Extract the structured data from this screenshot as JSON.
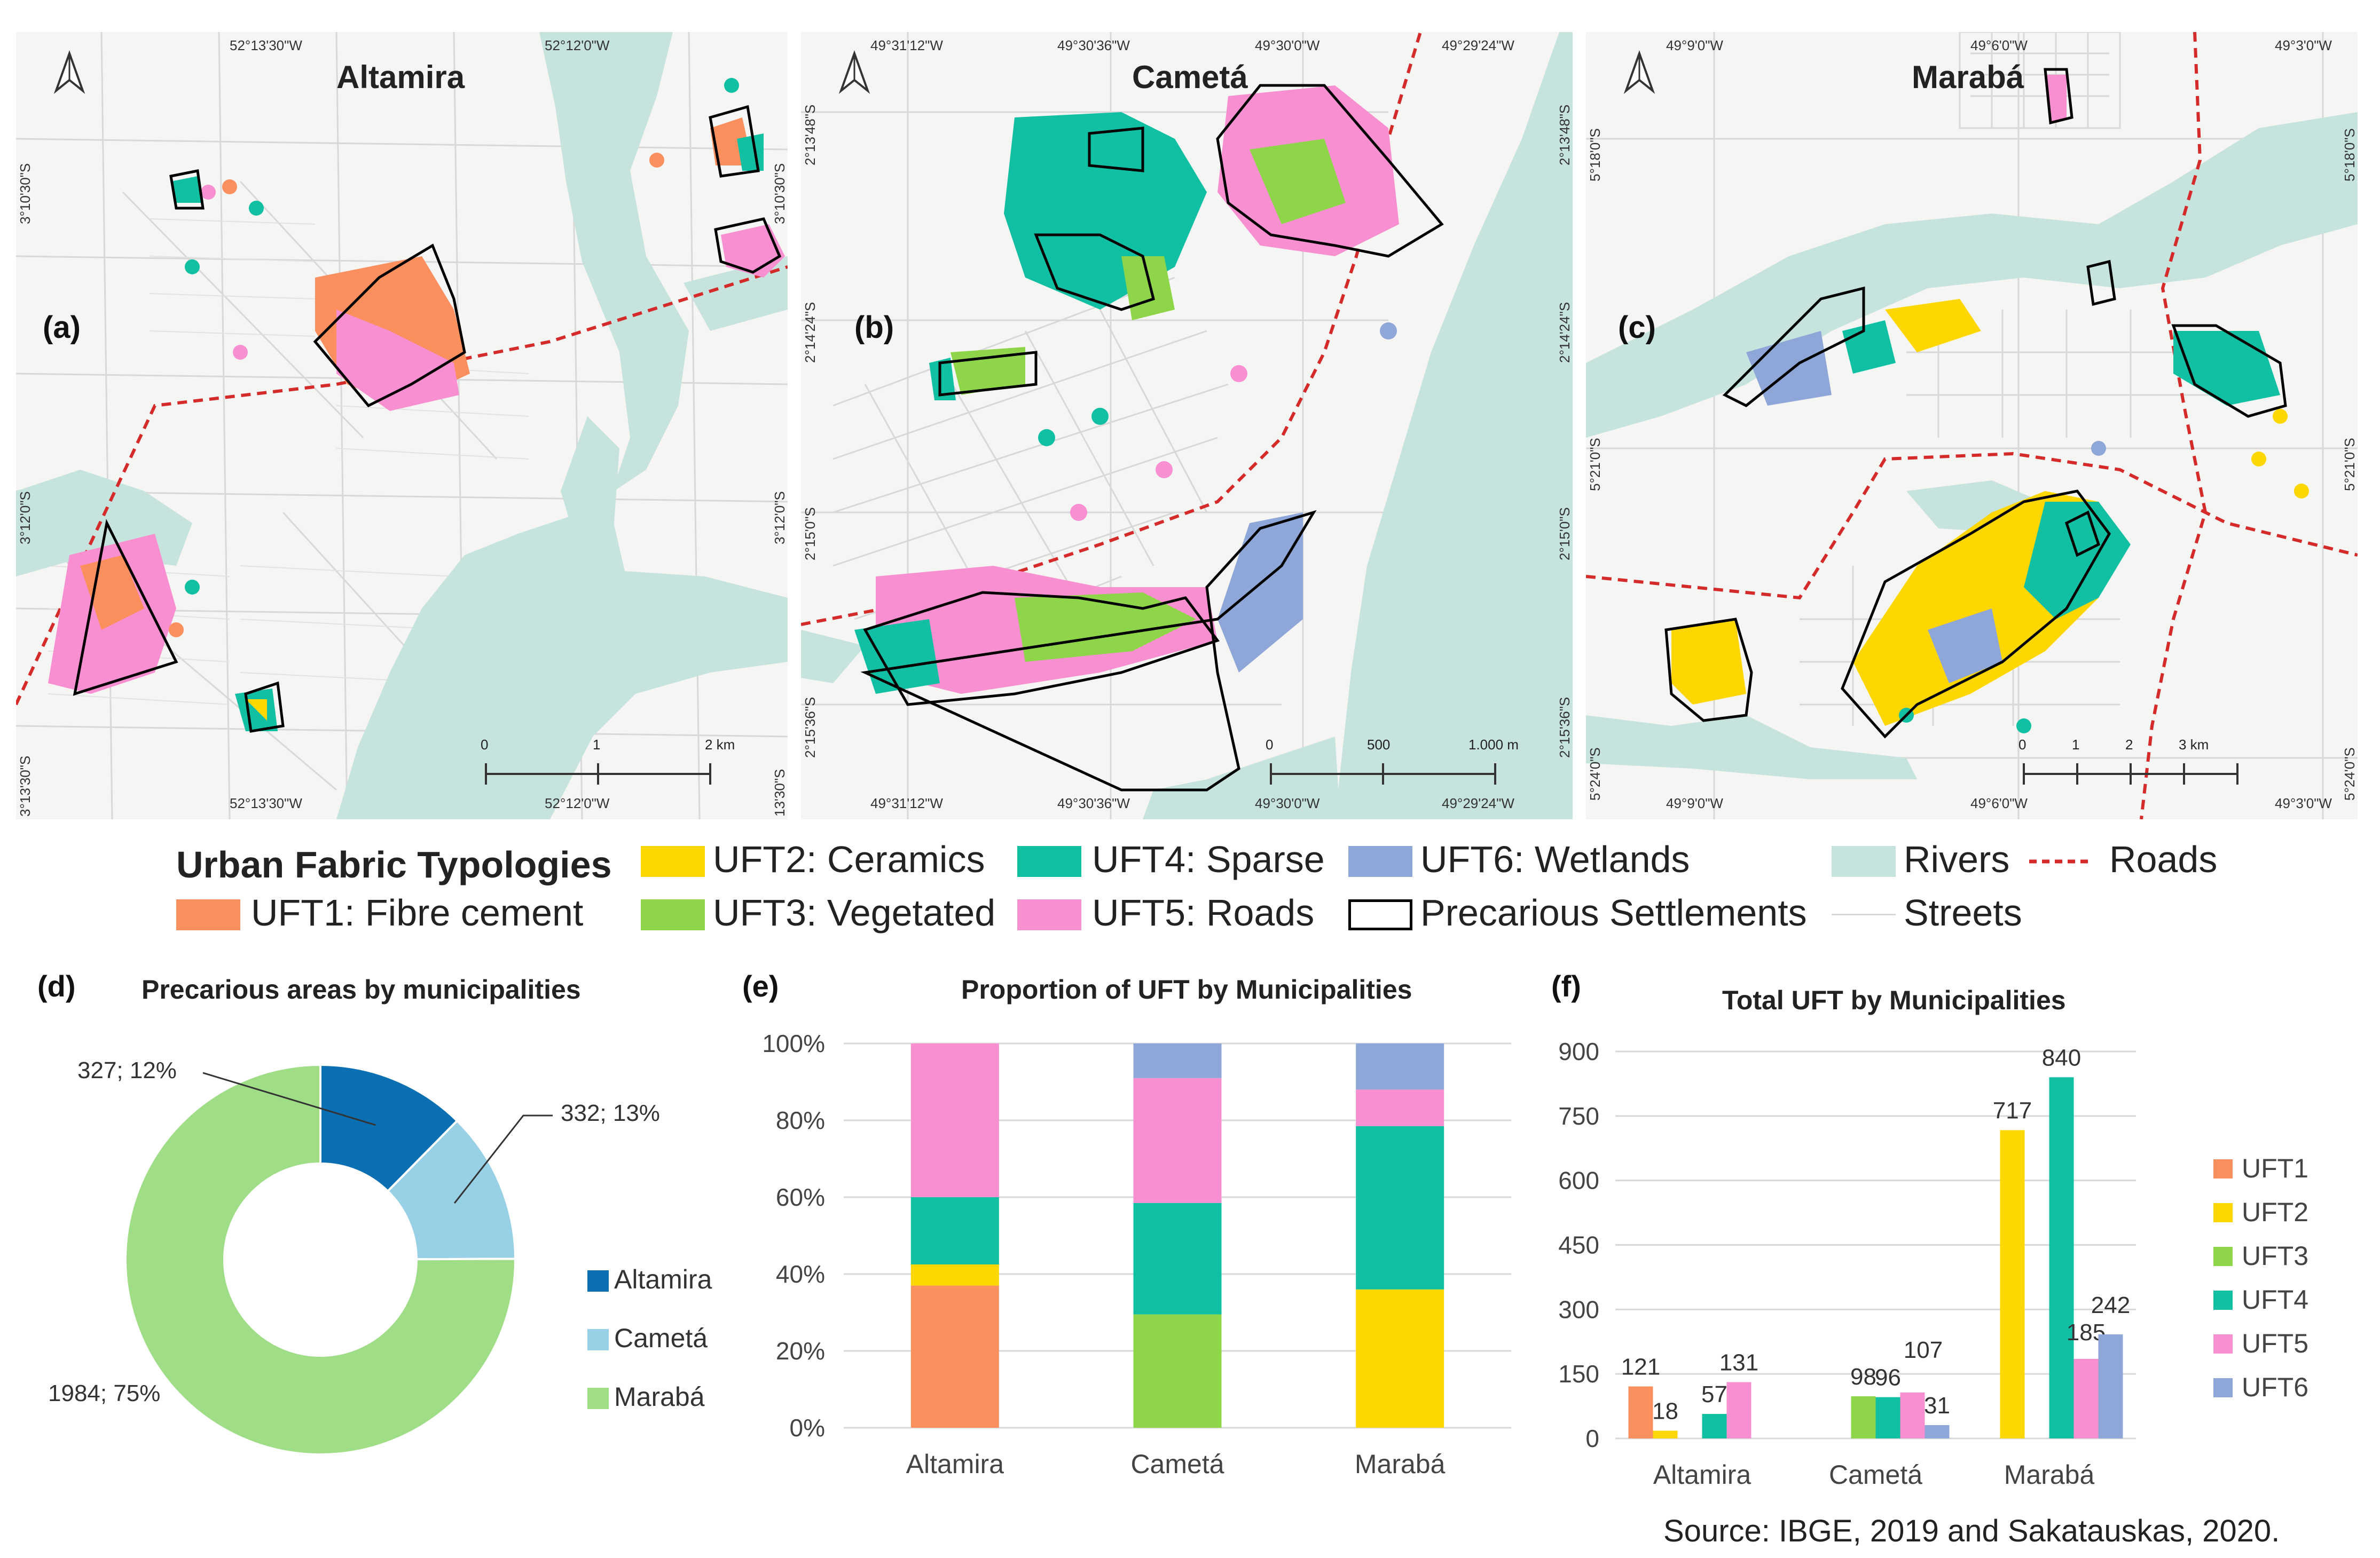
{
  "colors": {
    "uft1": "#fb8f5e",
    "uft2": "#ffd700",
    "uft3": "#8fd54a",
    "uft4": "#11c0a2",
    "uft5": "#f78fd0",
    "uft6": "#8ea7d8",
    "rivers": "#c6e3dd",
    "roads": "#d42a2a",
    "altamira": "#0a6fb3",
    "cameta": "#98d0e6",
    "maraba": "#9fde86"
  },
  "maps": [
    {
      "id": "altamira",
      "panel_label": "(a)",
      "title": "Altamira",
      "coords_top": [
        "52°13'30\"W",
        "52°12'0\"W"
      ],
      "coords_bottom": [
        "52°13'30\"W",
        "52°12'0\"W"
      ],
      "coords_left": [
        "3°10'30\"S",
        "3°12'0\"S",
        "3°13'30\"S"
      ],
      "coords_right": [
        "3°10'30\"S",
        "3°12'0\"S",
        "13'30\"S"
      ],
      "scale": [
        "0",
        "1",
        "2 km"
      ]
    },
    {
      "id": "cameta",
      "panel_label": "(b)",
      "title": "Cametá",
      "coords_top": [
        "49°31'12\"W",
        "49°30'36\"W",
        "49°30'0\"W",
        "49°29'24\"W"
      ],
      "coords_bottom": [
        "49°31'12\"W",
        "49°30'36\"W",
        "49°30'0\"W",
        "49°29'24\"W"
      ],
      "coords_left": [
        "2°13'48\"S",
        "2°14'24\"S",
        "2°15'0\"S",
        "2°15'36\"S"
      ],
      "coords_right": [
        "2°13'48\"S",
        "2°14'24\"S",
        "2°15'0\"S",
        "2°15'36\"S"
      ],
      "scale": [
        "0",
        "500",
        "1.000 m"
      ]
    },
    {
      "id": "maraba",
      "panel_label": "(c)",
      "title": "Marabá",
      "coords_top": [
        "49°9'0\"W",
        "49°6'0\"W",
        "49°3'0\"W"
      ],
      "coords_bottom": [
        "49°9'0\"W",
        "49°6'0\"W",
        "49°3'0\"W"
      ],
      "coords_left": [
        "5°18'0\"S",
        "5°21'0\"S",
        "5°24'0\"S"
      ],
      "coords_right": [
        "5°18'0\"S",
        "5°21'0\"S",
        "5°24'0\"S"
      ],
      "scale": [
        "0",
        "1",
        "2",
        "3 km"
      ]
    }
  ],
  "legend": {
    "title": "Urban Fabric Typologies",
    "uft1": "UFT1: Fibre cement",
    "uft2": "UFT2: Ceramics",
    "uft3": "UFT3: Vegetated",
    "uft4": "UFT4: Sparse",
    "uft5": "UFT5: Roads",
    "uft6": "UFT6: Wetlands",
    "precarious": "Precarious Settlements",
    "rivers": "Rivers",
    "roads": "Roads",
    "streets": "Streets"
  },
  "chart_data": [
    {
      "id": "d",
      "panel_label": "(d)",
      "type": "pie",
      "title": "Precarious areas by municipalities",
      "labels": [
        "Altamira",
        "Cametá",
        "Marabá"
      ],
      "values": [
        327,
        332,
        1984
      ],
      "percent": [
        12,
        13,
        75
      ],
      "data_labels": [
        "327; 12%",
        "332; 13%",
        "1984; 75%"
      ],
      "legend": "right"
    },
    {
      "id": "e",
      "panel_label": "(e)",
      "type": "bar",
      "stacked": true,
      "title": "Proportion of UFT by Municipalities",
      "categories": [
        "Altamira",
        "Cametá",
        "Marabá"
      ],
      "y_ticks": [
        "0%",
        "20%",
        "40%",
        "60%",
        "80%",
        "100%"
      ],
      "ylim": [
        0,
        100
      ],
      "series": [
        {
          "name": "UFT1",
          "values": [
            37,
            0,
            0
          ]
        },
        {
          "name": "UFT2",
          "values": [
            5.5,
            0,
            36
          ]
        },
        {
          "name": "UFT3",
          "values": [
            0,
            29.5,
            0
          ]
        },
        {
          "name": "UFT4",
          "values": [
            17.5,
            29,
            42.5
          ]
        },
        {
          "name": "UFT5",
          "values": [
            40,
            32.5,
            9.5
          ]
        },
        {
          "name": "UFT6",
          "values": [
            0,
            9,
            12
          ]
        }
      ]
    },
    {
      "id": "f",
      "panel_label": "(f)",
      "type": "bar",
      "title": "Total UFT by Municipalities",
      "categories": [
        "Altamira",
        "Cametá",
        "Marabá"
      ],
      "y_ticks": [
        "0",
        "150",
        "300",
        "450",
        "600",
        "750",
        "900"
      ],
      "ylim": [
        0,
        900
      ],
      "series": [
        {
          "name": "UFT1",
          "values": [
            121,
            0,
            0
          ]
        },
        {
          "name": "UFT2",
          "values": [
            18,
            0,
            717
          ]
        },
        {
          "name": "UFT3",
          "values": [
            0,
            98,
            0
          ]
        },
        {
          "name": "UFT4",
          "values": [
            57,
            96,
            840
          ]
        },
        {
          "name": "UFT5",
          "values": [
            131,
            107,
            185
          ]
        },
        {
          "name": "UFT6",
          "values": [
            0,
            31,
            242
          ]
        }
      ],
      "data_labels": [
        [
          "121",
          "18",
          "",
          "57",
          "131",
          ""
        ],
        [
          "",
          "",
          "98",
          "96",
          "107",
          "31"
        ],
        [
          "",
          "717",
          "",
          "840",
          "185",
          "242"
        ]
      ],
      "legend": "right"
    }
  ],
  "source": "Source: IBGE, 2019 and Sakatauskas, 2020."
}
